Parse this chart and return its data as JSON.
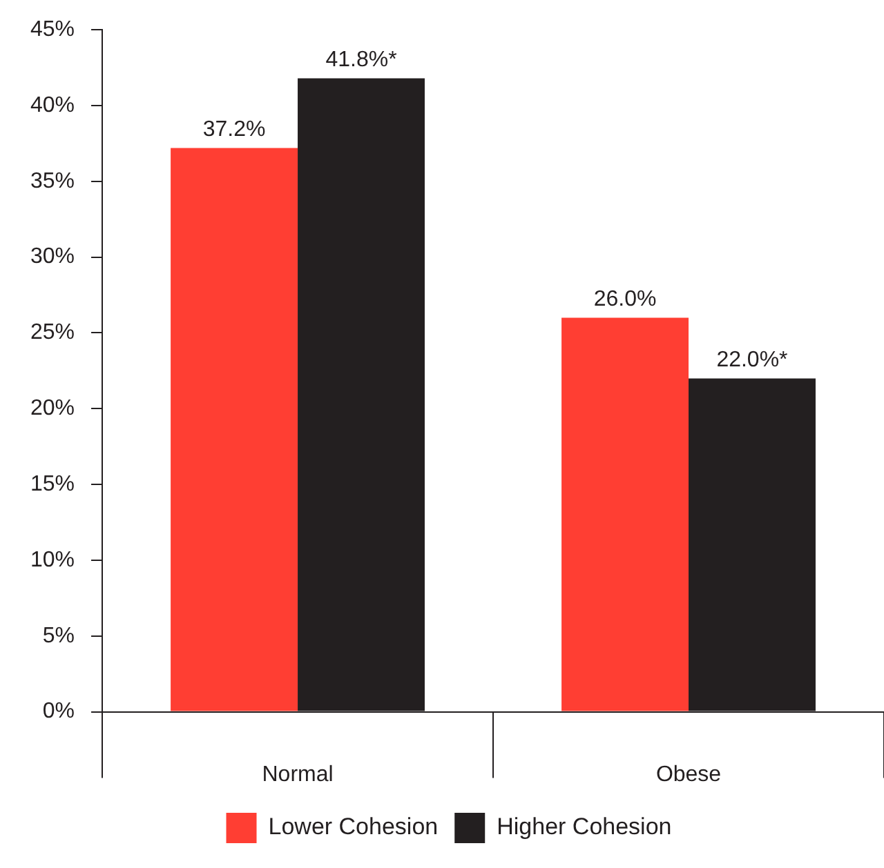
{
  "chart_data": {
    "type": "bar",
    "categories": [
      "Normal",
      "Obese"
    ],
    "series": [
      {
        "name": "Lower Cohesion",
        "color": "#ff3e33",
        "values": [
          37.2,
          26.0
        ],
        "value_labels": [
          "37.2%",
          "26.0%"
        ]
      },
      {
        "name": "Higher Cohesion",
        "color": "#231f20",
        "values": [
          41.8,
          22.0
        ],
        "value_labels": [
          "41.8%*",
          "22.0%*"
        ]
      }
    ],
    "ylim": [
      0,
      45
    ],
    "yticks": [
      {
        "value": 0,
        "label": "0%"
      },
      {
        "value": 5,
        "label": "5%"
      },
      {
        "value": 10,
        "label": "10%"
      },
      {
        "value": 15,
        "label": "15%"
      },
      {
        "value": 20,
        "label": "20%"
      },
      {
        "value": 25,
        "label": "25%"
      },
      {
        "value": 30,
        "label": "30%"
      },
      {
        "value": 35,
        "label": "35%"
      },
      {
        "value": 40,
        "label": "40%"
      },
      {
        "value": 45,
        "label": "45%"
      }
    ],
    "grid": false,
    "legend": "bottom"
  }
}
